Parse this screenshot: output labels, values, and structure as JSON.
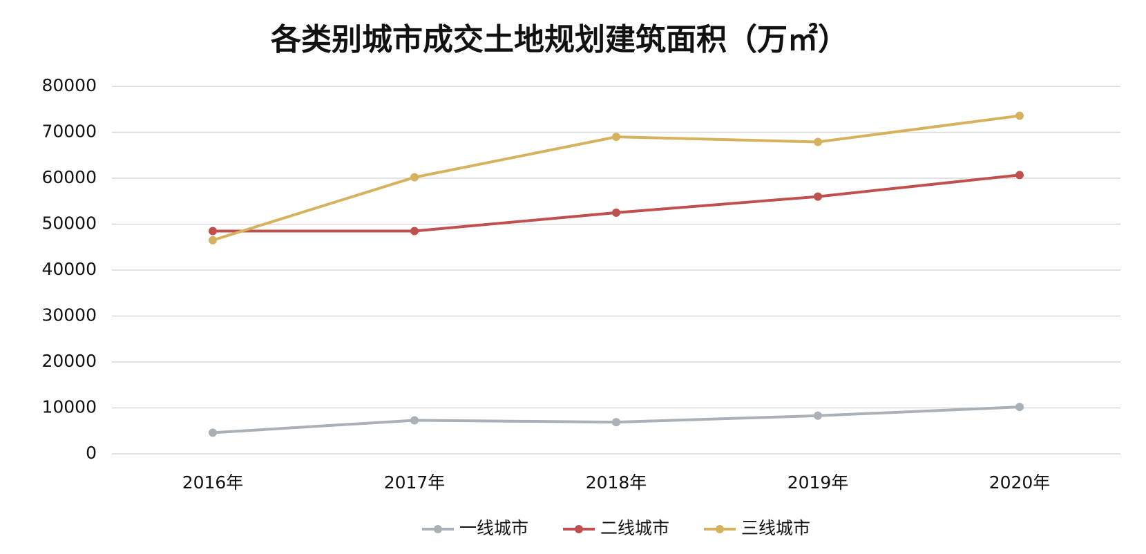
{
  "chart_data": {
    "type": "line",
    "title": "各类别城市成交土地规划建筑面积（万㎡）",
    "categories": [
      "2016年",
      "2017年",
      "2018年",
      "2019年",
      "2020年"
    ],
    "series": [
      {
        "name": "一线城市",
        "color": "#a9b0b8",
        "values": [
          4600,
          7300,
          6900,
          8300,
          10200
        ]
      },
      {
        "name": "二线城市",
        "color": "#c0504d",
        "values": [
          48500,
          48500,
          52500,
          56000,
          60700
        ]
      },
      {
        "name": "三线城市",
        "color": "#d6b25e",
        "values": [
          46500,
          60200,
          69000,
          67900,
          73600
        ]
      }
    ],
    "ylim": [
      0,
      80000
    ],
    "yticks": [
      0,
      10000,
      20000,
      30000,
      40000,
      50000,
      60000,
      70000,
      80000
    ],
    "grid": true,
    "legend": "bottom"
  }
}
